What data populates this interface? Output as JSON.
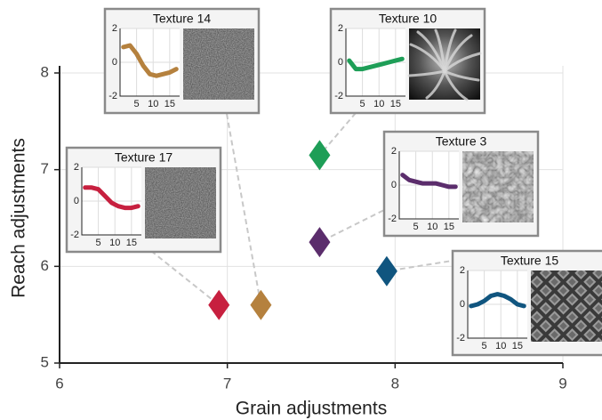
{
  "chart_data": {
    "type": "scatter",
    "x_label": "Grain adjustments",
    "y_label": "Reach adjustments",
    "xlim": [
      6,
      9
    ],
    "xticks": [
      6,
      7,
      8,
      9
    ],
    "ylim": [
      5,
      8
    ],
    "yticks": [
      5,
      6,
      7,
      8
    ],
    "grid": true,
    "inset_xlim": [
      0,
      18
    ],
    "inset_xticks": [
      5,
      10,
      15
    ],
    "inset_ylim": [
      -2,
      2
    ],
    "inset_yticks": [
      -2,
      0,
      2
    ],
    "series": [
      {
        "name": "Texture 14",
        "color": "#b5813e",
        "x": [
          7.2
        ],
        "values": [
          5.6
        ],
        "inset": {
          "x": [
            1,
            3,
            5,
            7,
            9,
            11,
            13,
            15,
            17
          ],
          "values": [
            0.9,
            1.0,
            0.5,
            -0.2,
            -0.7,
            -0.8,
            -0.7,
            -0.6,
            -0.4
          ]
        }
      },
      {
        "name": "Texture 10",
        "color": "#1e9e57",
        "x": [
          7.55
        ],
        "values": [
          7.15
        ],
        "inset": {
          "x": [
            1,
            3,
            5,
            7,
            9,
            11,
            13,
            15,
            17
          ],
          "values": [
            0.1,
            -0.4,
            -0.4,
            -0.3,
            -0.2,
            -0.1,
            0.0,
            0.1,
            0.2
          ]
        }
      },
      {
        "name": "Texture 17",
        "color": "#c7203f",
        "x": [
          6.95
        ],
        "values": [
          5.6
        ],
        "inset": {
          "x": [
            1,
            3,
            5,
            7,
            9,
            11,
            13,
            15,
            17
          ],
          "values": [
            0.8,
            0.8,
            0.7,
            0.3,
            -0.1,
            -0.3,
            -0.4,
            -0.4,
            -0.3
          ]
        }
      },
      {
        "name": "Texture 3",
        "color": "#5b2d6c",
        "x": [
          7.55
        ],
        "values": [
          6.25
        ],
        "inset": {
          "x": [
            1,
            3,
            5,
            7,
            9,
            11,
            13,
            15,
            17
          ],
          "values": [
            0.6,
            0.3,
            0.2,
            0.1,
            0.1,
            0.1,
            0.0,
            -0.1,
            -0.1
          ]
        }
      },
      {
        "name": "Texture 15",
        "color": "#10557f",
        "x": [
          7.95
        ],
        "values": [
          5.95
        ],
        "inset": {
          "x": [
            1,
            3,
            5,
            7,
            9,
            11,
            13,
            15,
            17
          ],
          "values": [
            -0.1,
            0.0,
            0.2,
            0.5,
            0.6,
            0.5,
            0.3,
            0.0,
            -0.1
          ]
        }
      }
    ]
  }
}
